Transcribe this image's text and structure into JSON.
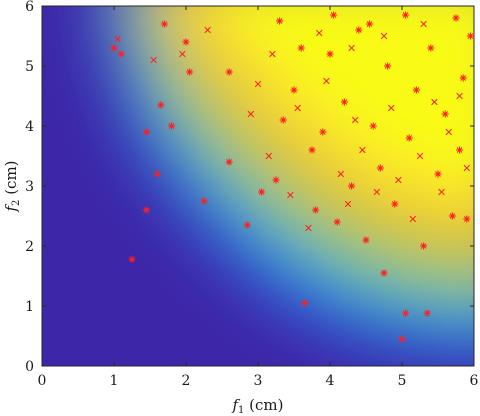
{
  "chart_data": {
    "type": "scatter",
    "title": "",
    "xlabel": {
      "var": "f",
      "sub": "1",
      "unit": " (cm)"
    },
    "ylabel": {
      "var": "f",
      "sub": "2",
      "unit": " (cm)"
    },
    "xlim": [
      0,
      6
    ],
    "ylim": [
      0,
      6
    ],
    "xticks": [
      "0",
      "1",
      "2",
      "3",
      "4",
      "5",
      "6"
    ],
    "yticks": [
      "0",
      "1",
      "2",
      "3",
      "4",
      "5",
      "6"
    ],
    "grid": false,
    "legend": "none",
    "background": {
      "type": "heatmap",
      "colormap": [
        "#3e26a8",
        "#2c7dfa",
        "#17bfb9",
        "#a5c730",
        "#fbbe3e",
        "#f9fb15"
      ]
    },
    "marker_color": "#ff1f1f",
    "series": [
      {
        "marker": "asterisk",
        "points": [
          [
            1.0,
            5.3
          ],
          [
            1.1,
            5.2
          ],
          [
            1.45,
            3.9
          ],
          [
            1.45,
            2.6
          ],
          [
            1.25,
            1.78
          ],
          [
            1.6,
            3.2
          ],
          [
            1.65,
            4.35
          ],
          [
            1.7,
            5.7
          ],
          [
            1.8,
            4.0
          ],
          [
            2.0,
            5.4
          ],
          [
            2.05,
            4.9
          ],
          [
            2.25,
            2.75
          ],
          [
            2.6,
            3.4
          ],
          [
            2.6,
            4.9
          ],
          [
            2.85,
            2.35
          ],
          [
            3.05,
            2.9
          ],
          [
            3.25,
            3.1
          ],
          [
            3.35,
            4.1
          ],
          [
            3.5,
            4.6
          ],
          [
            3.65,
            1.05
          ],
          [
            3.75,
            3.6
          ],
          [
            3.8,
            2.6
          ],
          [
            3.9,
            3.9
          ],
          [
            4.0,
            5.2
          ],
          [
            4.1,
            2.4
          ],
          [
            4.2,
            4.4
          ],
          [
            4.3,
            3.0
          ],
          [
            4.4,
            5.6
          ],
          [
            4.5,
            2.1
          ],
          [
            4.6,
            4.0
          ],
          [
            4.7,
            3.3
          ],
          [
            4.75,
            1.55
          ],
          [
            4.8,
            5.0
          ],
          [
            4.9,
            2.7
          ],
          [
            5.0,
            0.45
          ],
          [
            5.05,
            0.88
          ],
          [
            5.1,
            3.8
          ],
          [
            5.2,
            4.6
          ],
          [
            5.3,
            2.0
          ],
          [
            5.35,
            0.88
          ],
          [
            5.4,
            5.3
          ],
          [
            5.5,
            3.2
          ],
          [
            5.6,
            4.2
          ],
          [
            5.7,
            2.5
          ],
          [
            5.75,
            5.8
          ],
          [
            5.8,
            3.6
          ],
          [
            5.85,
            4.8
          ],
          [
            5.9,
            2.45
          ],
          [
            5.95,
            5.5
          ],
          [
            3.3,
            5.75
          ],
          [
            3.6,
            5.3
          ],
          [
            4.05,
            5.85
          ],
          [
            4.55,
            5.7
          ],
          [
            5.05,
            5.85
          ]
        ]
      },
      {
        "marker": "cross",
        "points": [
          [
            1.05,
            5.45
          ],
          [
            1.55,
            5.1
          ],
          [
            1.95,
            5.2
          ],
          [
            2.3,
            5.6
          ],
          [
            2.9,
            4.2
          ],
          [
            3.0,
            4.7
          ],
          [
            3.15,
            3.5
          ],
          [
            3.45,
            2.85
          ],
          [
            3.55,
            4.3
          ],
          [
            3.7,
            2.3
          ],
          [
            3.95,
            4.75
          ],
          [
            4.15,
            3.2
          ],
          [
            4.25,
            2.7
          ],
          [
            4.35,
            4.1
          ],
          [
            4.45,
            3.6
          ],
          [
            4.65,
            2.9
          ],
          [
            4.85,
            4.3
          ],
          [
            4.95,
            3.1
          ],
          [
            5.15,
            2.45
          ],
          [
            5.25,
            3.5
          ],
          [
            5.45,
            4.4
          ],
          [
            5.55,
            2.9
          ],
          [
            5.65,
            3.9
          ],
          [
            5.8,
            4.5
          ],
          [
            5.9,
            3.3
          ],
          [
            3.2,
            5.2
          ],
          [
            3.85,
            5.55
          ],
          [
            4.3,
            5.3
          ],
          [
            4.75,
            5.5
          ],
          [
            5.3,
            5.7
          ]
        ]
      }
    ]
  }
}
